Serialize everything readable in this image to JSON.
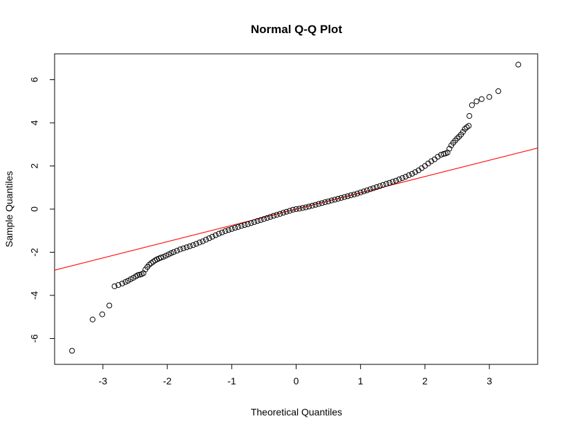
{
  "chart_data": {
    "type": "scatter",
    "title": "Normal Q-Q Plot",
    "xlabel": "Theoretical Quantiles",
    "ylabel": "Sample Quantiles",
    "xlim": [
      -3.75,
      3.75
    ],
    "ylim": [
      -7.2,
      7.2
    ],
    "xticks": [
      -3,
      -2,
      -1,
      0,
      1,
      2,
      3
    ],
    "yticks": [
      -6,
      -4,
      -2,
      0,
      2,
      4,
      6
    ],
    "grid": false,
    "reference_line": {
      "intercept": 0.0,
      "slope": 0.755,
      "color": "#ff0000"
    },
    "points": [
      [
        -3.48,
        -6.57
      ],
      [
        -3.16,
        -5.12
      ],
      [
        -3.01,
        -4.88
      ],
      [
        -2.9,
        -4.47
      ],
      [
        -2.82,
        -3.58
      ],
      [
        -2.76,
        -3.52
      ],
      [
        -2.7,
        -3.45
      ],
      [
        -2.65,
        -3.38
      ],
      [
        -2.61,
        -3.32
      ],
      [
        -2.57,
        -3.25
      ],
      [
        -2.53,
        -3.19
      ],
      [
        -2.49,
        -3.12
      ],
      [
        -2.46,
        -3.07
      ],
      [
        -2.43,
        -3.04
      ],
      [
        -2.4,
        -3.02
      ],
      [
        -2.37,
        -2.97
      ],
      [
        -2.34,
        -2.8
      ],
      [
        -2.31,
        -2.68
      ],
      [
        -2.28,
        -2.58
      ],
      [
        -2.25,
        -2.51
      ],
      [
        -2.22,
        -2.44
      ],
      [
        -2.19,
        -2.38
      ],
      [
        -2.16,
        -2.33
      ],
      [
        -2.13,
        -2.29
      ],
      [
        -2.1,
        -2.25
      ],
      [
        -2.06,
        -2.21
      ],
      [
        -2.02,
        -2.16
      ],
      [
        -1.98,
        -2.1
      ],
      [
        -1.94,
        -2.04
      ],
      [
        -1.9,
        -1.99
      ],
      [
        -1.85,
        -1.93
      ],
      [
        -1.8,
        -1.87
      ],
      [
        -1.75,
        -1.82
      ],
      [
        -1.7,
        -1.77
      ],
      [
        -1.65,
        -1.72
      ],
      [
        -1.6,
        -1.67
      ],
      [
        -1.55,
        -1.61
      ],
      [
        -1.5,
        -1.55
      ],
      [
        -1.45,
        -1.49
      ],
      [
        -1.4,
        -1.42
      ],
      [
        -1.35,
        -1.35
      ],
      [
        -1.3,
        -1.28
      ],
      [
        -1.25,
        -1.21
      ],
      [
        -1.2,
        -1.14
      ],
      [
        -1.15,
        -1.08
      ],
      [
        -1.1,
        -1.02
      ],
      [
        -1.05,
        -0.97
      ],
      [
        -1.0,
        -0.92
      ],
      [
        -0.95,
        -0.87
      ],
      [
        -0.9,
        -0.83
      ],
      [
        -0.85,
        -0.78
      ],
      [
        -0.8,
        -0.74
      ],
      [
        -0.75,
        -0.7
      ],
      [
        -0.7,
        -0.65
      ],
      [
        -0.65,
        -0.6
      ],
      [
        -0.6,
        -0.55
      ],
      [
        -0.55,
        -0.51
      ],
      [
        -0.5,
        -0.46
      ],
      [
        -0.45,
        -0.41
      ],
      [
        -0.4,
        -0.36
      ],
      [
        -0.35,
        -0.31
      ],
      [
        -0.3,
        -0.27
      ],
      [
        -0.25,
        -0.22
      ],
      [
        -0.2,
        -0.17
      ],
      [
        -0.15,
        -0.12
      ],
      [
        -0.1,
        -0.08
      ],
      [
        -0.05,
        -0.03
      ],
      [
        0.0,
        0.0
      ],
      [
        0.05,
        0.02
      ],
      [
        0.1,
        0.05
      ],
      [
        0.15,
        0.08
      ],
      [
        0.2,
        0.12
      ],
      [
        0.25,
        0.16
      ],
      [
        0.3,
        0.2
      ],
      [
        0.35,
        0.24
      ],
      [
        0.4,
        0.28
      ],
      [
        0.45,
        0.32
      ],
      [
        0.5,
        0.36
      ],
      [
        0.55,
        0.4
      ],
      [
        0.6,
        0.44
      ],
      [
        0.65,
        0.48
      ],
      [
        0.7,
        0.52
      ],
      [
        0.75,
        0.56
      ],
      [
        0.8,
        0.6
      ],
      [
        0.85,
        0.64
      ],
      [
        0.9,
        0.68
      ],
      [
        0.95,
        0.72
      ],
      [
        1.0,
        0.77
      ],
      [
        1.05,
        0.82
      ],
      [
        1.1,
        0.87
      ],
      [
        1.15,
        0.92
      ],
      [
        1.2,
        0.97
      ],
      [
        1.25,
        1.02
      ],
      [
        1.3,
        1.07
      ],
      [
        1.35,
        1.12
      ],
      [
        1.4,
        1.17
      ],
      [
        1.45,
        1.22
      ],
      [
        1.5,
        1.27
      ],
      [
        1.55,
        1.32
      ],
      [
        1.6,
        1.38
      ],
      [
        1.65,
        1.44
      ],
      [
        1.7,
        1.5
      ],
      [
        1.75,
        1.57
      ],
      [
        1.8,
        1.64
      ],
      [
        1.85,
        1.72
      ],
      [
        1.9,
        1.8
      ],
      [
        1.95,
        1.9
      ],
      [
        2.0,
        2.0
      ],
      [
        2.05,
        2.12
      ],
      [
        2.1,
        2.22
      ],
      [
        2.15,
        2.31
      ],
      [
        2.2,
        2.43
      ],
      [
        2.25,
        2.52
      ],
      [
        2.29,
        2.56
      ],
      [
        2.32,
        2.58
      ],
      [
        2.35,
        2.62
      ],
      [
        2.38,
        2.8
      ],
      [
        2.41,
        2.96
      ],
      [
        2.44,
        3.08
      ],
      [
        2.47,
        3.18
      ],
      [
        2.5,
        3.28
      ],
      [
        2.53,
        3.36
      ],
      [
        2.56,
        3.46
      ],
      [
        2.59,
        3.58
      ],
      [
        2.62,
        3.72
      ],
      [
        2.65,
        3.8
      ],
      [
        2.68,
        3.86
      ],
      [
        2.69,
        4.32
      ],
      [
        2.73,
        4.82
      ],
      [
        2.8,
        5.0
      ],
      [
        2.88,
        5.1
      ],
      [
        3.0,
        5.2
      ],
      [
        3.14,
        5.47
      ],
      [
        3.45,
        6.7
      ]
    ]
  }
}
